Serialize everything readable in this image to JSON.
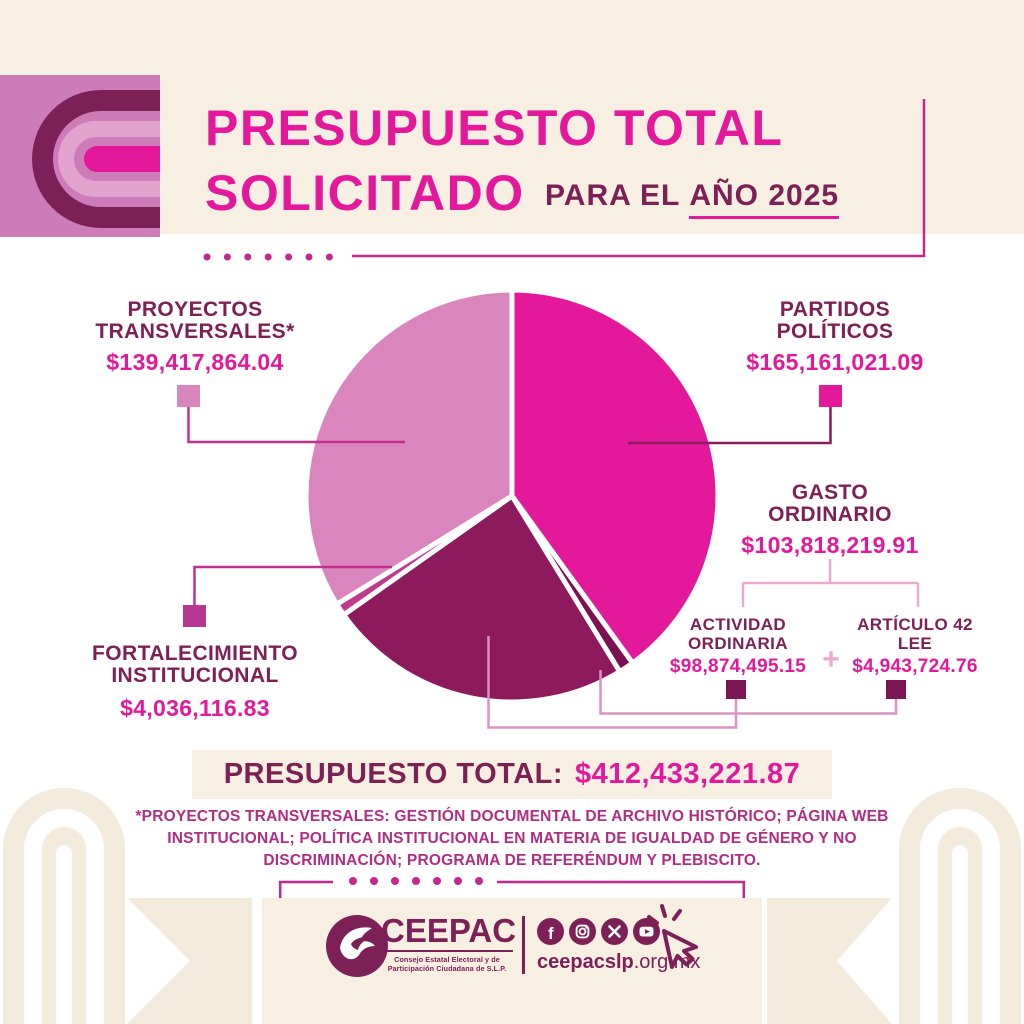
{
  "header": {
    "title_line1": "PRESUPUESTO TOTAL",
    "title_line2": "SOLICITADO",
    "subtitle_prefix": "PARA EL",
    "subtitle_underlined": "AÑO 2025"
  },
  "chart_data": {
    "type": "pie",
    "title": "PRESUPUESTO TOTAL SOLICITADO PARA EL AÑO 2025",
    "direction": "clockwise",
    "start_angle_deg": 0,
    "total": 412433221.87,
    "slices": [
      {
        "id": "partidos",
        "label": "PARTIDOS POLÍTICOS",
        "value": 165161021.09,
        "display": "$165,161,021.09",
        "color": "#E3189B"
      },
      {
        "id": "articulo42",
        "label": "ARTÍCULO 42 LEE",
        "value": 4943724.76,
        "display": "$4,943,724.76",
        "color": "#791152"
      },
      {
        "id": "actividad",
        "label": "ACTIVIDAD ORDINARIA",
        "value": 98874495.15,
        "display": "$98,874,495.15",
        "color": "#8C1A5C"
      },
      {
        "id": "fortalecimiento",
        "label": "FORTALECIMIENTO INSTITUCIONAL",
        "value": 4036116.83,
        "display": "$4,036,116.83",
        "color": "#C0398E"
      },
      {
        "id": "proyectos",
        "label": "PROYECTOS TRANSVERSALES*",
        "value": 139417864.04,
        "display": "$139,417,864.04",
        "color": "#DB85BE"
      }
    ],
    "groups": [
      {
        "label": "GASTO ORDINARIO",
        "display": "$103,818,219.91",
        "value": 103818219.91,
        "children": [
          "ACTIVIDAD ORDINARIA",
          "ARTÍCULO 42 LEE"
        ]
      }
    ]
  },
  "callouts": {
    "proyectos": {
      "line1": "PROYECTOS",
      "line2": "TRANSVERSALES*",
      "amount": "$139,417,864.04"
    },
    "partidos": {
      "line1": "PARTIDOS",
      "line2": "POLÍTICOS",
      "amount": "$165,161,021.09"
    },
    "gasto": {
      "line1": "GASTO",
      "line2": "ORDINARIO",
      "amount": "$103,818,219.91"
    },
    "actividad": {
      "line1": "ACTIVIDAD",
      "line2": "ORDINARIA",
      "amount": "$98,874,495.15"
    },
    "articulo": {
      "line1": "ARTÍCULO 42",
      "line2": "LEE",
      "amount": "$4,943,724.76"
    },
    "fortalecimiento": {
      "line1": "FORTALECIMIENTO",
      "line2": "INSTITUCIONAL",
      "amount": "$4,036,116.83"
    },
    "plus": "+"
  },
  "total": {
    "label": "PRESUPUESTO TOTAL:",
    "value": "$412,433,221.87"
  },
  "footnote": {
    "lead": "*PROYECTOS TRANSVERSALES:",
    "body": " GESTIÓN DOCUMENTAL DE ARCHIVO HISTÓRICO; PÁGINA WEB INSTITUCIONAL; POLÍTICA INSTITUCIONAL EN MATERIA DE IGUALDAD DE GÉNERO Y NO DISCRIMINACIÓN; PROGRAMA DE REFERÉNDUM Y PLEBISCITO."
  },
  "footer": {
    "brand": "CEEPAC",
    "tagline": "Consejo Estatal Electoral y de Participación Ciudadana de S.L.P.",
    "website_bold": "ceepacslp",
    "website_suffix": ".org.mx",
    "icons": [
      "facebook-icon",
      "instagram-icon",
      "x-icon",
      "youtube-icon",
      "cursor-click-icon"
    ],
    "colors": {
      "brand_maroon": "#7D2057",
      "magenta": "#E3189B",
      "frame_pink": "#C4278F",
      "cream": "#F8EFE3"
    }
  }
}
